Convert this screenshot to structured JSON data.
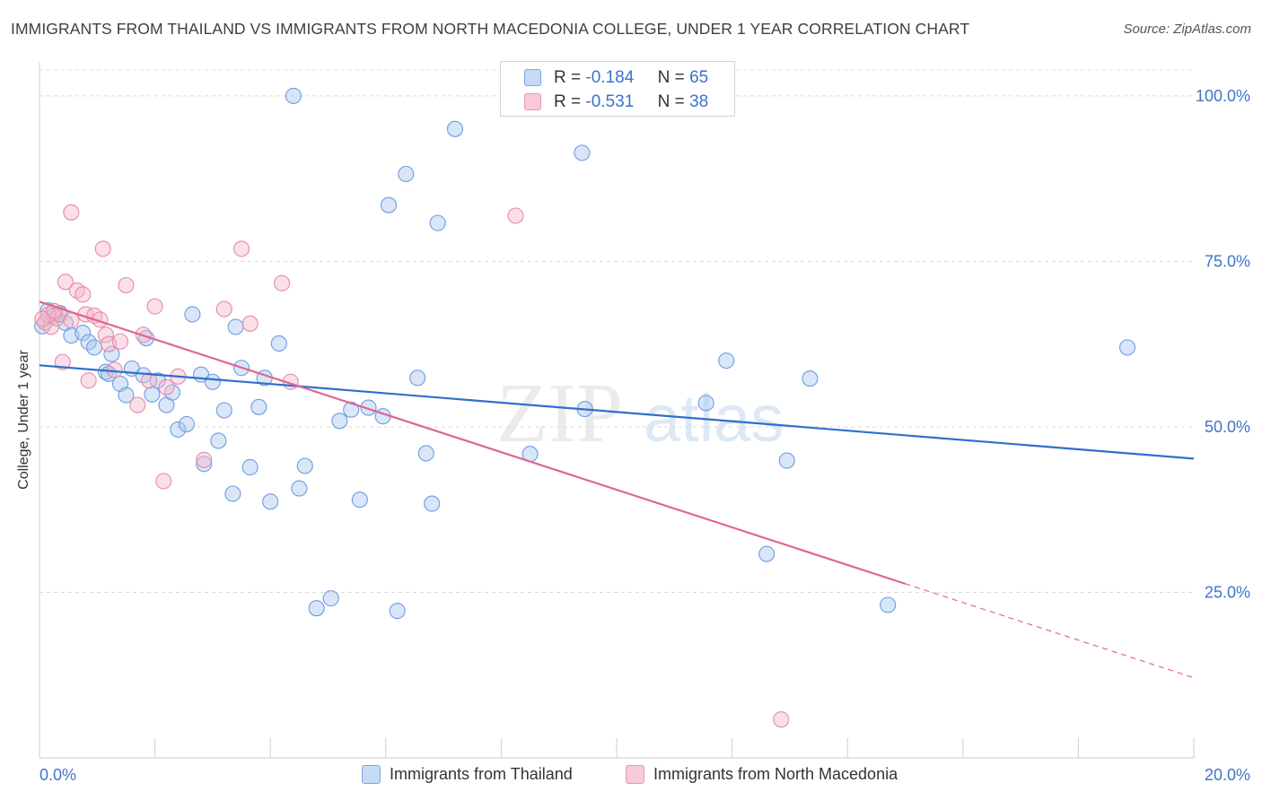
{
  "title": "IMMIGRANTS FROM THAILAND VS IMMIGRANTS FROM NORTH MACEDONIA COLLEGE, UNDER 1 YEAR CORRELATION CHART",
  "source": "Source: ZipAtlas.com",
  "watermark": {
    "zip": "ZIP",
    "atlas": "atlas"
  },
  "legend": {
    "r_label": "R =",
    "n_label": "N =",
    "entries": [
      {
        "r": "-0.184",
        "n": "65"
      },
      {
        "r": "-0.531",
        "n": "38"
      }
    ]
  },
  "colors": {
    "blue_fill": "#a9c8ef",
    "blue_stroke": "#6b9de0",
    "blue_line": "#2f6fcb",
    "pink_fill": "#f5b8cb",
    "pink_stroke": "#e58aa8",
    "pink_line": "#e06690",
    "tick_label": "#3f74c8"
  },
  "chart_data": {
    "type": "scatter",
    "xlabel": "",
    "ylabel": "College, Under 1 year",
    "xlim": [
      0,
      20
    ],
    "ylim": [
      0,
      105
    ],
    "x_tick_labels": [
      "0.0%",
      "20.0%"
    ],
    "y_ticks": [
      25,
      50,
      75,
      100
    ],
    "y_tick_labels": [
      "25.0%",
      "50.0%",
      "75.0%",
      "100.0%"
    ],
    "grid": "horizontal dashed",
    "legend_position": "top-center",
    "series": [
      {
        "name": "Immigrants from Thailand",
        "color": "#6b9de0",
        "trend": {
          "x": [
            0,
            20
          ],
          "y": [
            59.3,
            45.2
          ]
        },
        "points": [
          {
            "x": 0.15,
            "y": 67.6
          },
          {
            "x": 0.25,
            "y": 66.8
          },
          {
            "x": 0.35,
            "y": 67.2
          },
          {
            "x": 0.45,
            "y": 65.7
          },
          {
            "x": 0.55,
            "y": 63.8
          },
          {
            "x": 0.75,
            "y": 64.2
          },
          {
            "x": 0.85,
            "y": 62.8
          },
          {
            "x": 0.95,
            "y": 62.0
          },
          {
            "x": 1.25,
            "y": 61.0
          },
          {
            "x": 1.15,
            "y": 58.3
          },
          {
            "x": 1.2,
            "y": 58.0
          },
          {
            "x": 1.4,
            "y": 56.5
          },
          {
            "x": 1.6,
            "y": 58.8
          },
          {
            "x": 1.5,
            "y": 54.8
          },
          {
            "x": 1.8,
            "y": 57.8
          },
          {
            "x": 1.85,
            "y": 63.4
          },
          {
            "x": 1.95,
            "y": 54.9
          },
          {
            "x": 2.05,
            "y": 57.0
          },
          {
            "x": 2.2,
            "y": 53.3
          },
          {
            "x": 2.3,
            "y": 55.2
          },
          {
            "x": 2.4,
            "y": 49.6
          },
          {
            "x": 2.55,
            "y": 50.4
          },
          {
            "x": 2.65,
            "y": 67.0
          },
          {
            "x": 2.8,
            "y": 57.9
          },
          {
            "x": 2.85,
            "y": 44.4
          },
          {
            "x": 3.0,
            "y": 56.8
          },
          {
            "x": 3.1,
            "y": 47.9
          },
          {
            "x": 3.2,
            "y": 52.5
          },
          {
            "x": 3.35,
            "y": 39.9
          },
          {
            "x": 3.4,
            "y": 65.1
          },
          {
            "x": 3.5,
            "y": 58.9
          },
          {
            "x": 3.65,
            "y": 43.9
          },
          {
            "x": 3.8,
            "y": 53.0
          },
          {
            "x": 3.9,
            "y": 57.4
          },
          {
            "x": 4.0,
            "y": 38.7
          },
          {
            "x": 4.15,
            "y": 62.6
          },
          {
            "x": 4.4,
            "y": 100.0
          },
          {
            "x": 4.5,
            "y": 40.7
          },
          {
            "x": 4.6,
            "y": 44.1
          },
          {
            "x": 4.8,
            "y": 22.6
          },
          {
            "x": 5.05,
            "y": 24.1
          },
          {
            "x": 5.2,
            "y": 50.9
          },
          {
            "x": 5.4,
            "y": 52.6
          },
          {
            "x": 5.55,
            "y": 39.0
          },
          {
            "x": 5.7,
            "y": 52.9
          },
          {
            "x": 5.95,
            "y": 51.6
          },
          {
            "x": 6.05,
            "y": 83.5
          },
          {
            "x": 6.2,
            "y": 22.2
          },
          {
            "x": 6.35,
            "y": 88.2
          },
          {
            "x": 6.55,
            "y": 57.4
          },
          {
            "x": 6.7,
            "y": 46.0
          },
          {
            "x": 6.8,
            "y": 38.4
          },
          {
            "x": 6.9,
            "y": 80.8
          },
          {
            "x": 7.2,
            "y": 95.0
          },
          {
            "x": 8.5,
            "y": 45.9
          },
          {
            "x": 9.4,
            "y": 91.4
          },
          {
            "x": 9.45,
            "y": 52.7
          },
          {
            "x": 11.55,
            "y": 53.6
          },
          {
            "x": 11.9,
            "y": 60.0
          },
          {
            "x": 12.6,
            "y": 30.8
          },
          {
            "x": 12.95,
            "y": 44.9
          },
          {
            "x": 13.35,
            "y": 57.3
          },
          {
            "x": 14.7,
            "y": 23.1
          },
          {
            "x": 18.85,
            "y": 62.0
          },
          {
            "x": 0.05,
            "y": 65.2
          }
        ]
      },
      {
        "name": "Immigrants from North Macedonia",
        "color": "#e58aa8",
        "trend": {
          "x": [
            0,
            15
          ],
          "y": [
            68.9,
            26.3
          ]
        },
        "trend_dashed": {
          "x": [
            15,
            20
          ],
          "y": [
            26.3,
            12.1
          ]
        },
        "points": [
          {
            "x": 0.1,
            "y": 65.8
          },
          {
            "x": 0.2,
            "y": 65.1
          },
          {
            "x": 0.3,
            "y": 66.4
          },
          {
            "x": 0.35,
            "y": 67.0
          },
          {
            "x": 0.4,
            "y": 59.8
          },
          {
            "x": 0.45,
            "y": 71.9
          },
          {
            "x": 0.55,
            "y": 66.1
          },
          {
            "x": 0.55,
            "y": 82.4
          },
          {
            "x": 0.65,
            "y": 70.6
          },
          {
            "x": 0.75,
            "y": 70.0
          },
          {
            "x": 0.8,
            "y": 67.0
          },
          {
            "x": 0.85,
            "y": 57.0
          },
          {
            "x": 0.95,
            "y": 66.8
          },
          {
            "x": 1.05,
            "y": 66.2
          },
          {
            "x": 1.1,
            "y": 76.9
          },
          {
            "x": 1.15,
            "y": 63.9
          },
          {
            "x": 1.2,
            "y": 62.5
          },
          {
            "x": 1.3,
            "y": 58.6
          },
          {
            "x": 1.4,
            "y": 62.9
          },
          {
            "x": 1.5,
            "y": 71.4
          },
          {
            "x": 1.7,
            "y": 53.3
          },
          {
            "x": 1.8,
            "y": 63.9
          },
          {
            "x": 1.9,
            "y": 57.0
          },
          {
            "x": 2.0,
            "y": 68.2
          },
          {
            "x": 2.15,
            "y": 41.8
          },
          {
            "x": 2.2,
            "y": 56.0
          },
          {
            "x": 2.4,
            "y": 57.6
          },
          {
            "x": 2.85,
            "y": 45.0
          },
          {
            "x": 3.2,
            "y": 67.8
          },
          {
            "x": 3.5,
            "y": 76.9
          },
          {
            "x": 3.65,
            "y": 65.6
          },
          {
            "x": 4.2,
            "y": 71.7
          },
          {
            "x": 4.35,
            "y": 56.8
          },
          {
            "x": 8.25,
            "y": 81.9
          },
          {
            "x": 12.85,
            "y": 5.8
          },
          {
            "x": 0.15,
            "y": 66.9
          },
          {
            "x": 0.25,
            "y": 67.5
          },
          {
            "x": 0.05,
            "y": 66.3
          }
        ]
      }
    ]
  }
}
